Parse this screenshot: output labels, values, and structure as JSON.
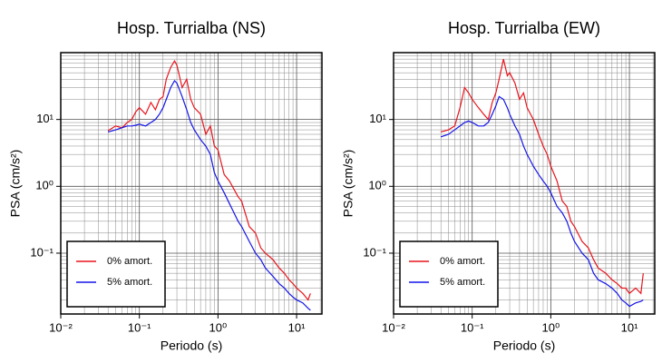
{
  "chart_data": [
    {
      "type": "line",
      "title": "Hosp. Turrialba (NS)",
      "xlabel": "Periodo (s)",
      "ylabel": "PSA (cm/s²)",
      "x": [
        0.04,
        0.05,
        0.06,
        0.07,
        0.08,
        0.09,
        0.1,
        0.12,
        0.14,
        0.16,
        0.18,
        0.2,
        0.22,
        0.25,
        0.28,
        0.3,
        0.35,
        0.4,
        0.45,
        0.5,
        0.6,
        0.7,
        0.8,
        0.9,
        1,
        1.2,
        1.4,
        1.6,
        1.8,
        2,
        2.5,
        3,
        3.5,
        4,
        5,
        6,
        7,
        8,
        9,
        10,
        12,
        14,
        15
      ],
      "series": [
        {
          "name": "0% amort.",
          "color": "#e8141c",
          "values": [
            6.8,
            8,
            7.5,
            9,
            10,
            13,
            15,
            12,
            18,
            14,
            20,
            22,
            40,
            60,
            75,
            65,
            30,
            40,
            20,
            15,
            12,
            6,
            8,
            4,
            3.5,
            1.5,
            1.2,
            0.9,
            0.7,
            0.6,
            0.25,
            0.2,
            0.12,
            0.1,
            0.08,
            0.06,
            0.05,
            0.04,
            0.035,
            0.03,
            0.025,
            0.02,
            0.025
          ]
        },
        {
          "name": "5% amort.",
          "color": "#1414e8",
          "values": [
            6.5,
            7,
            7.5,
            8,
            8,
            8.2,
            8.5,
            8,
            9,
            10,
            12,
            15,
            20,
            30,
            38,
            35,
            22,
            14,
            9,
            7,
            5,
            4,
            3,
            1.6,
            1.2,
            0.8,
            0.55,
            0.4,
            0.3,
            0.25,
            0.15,
            0.1,
            0.08,
            0.06,
            0.045,
            0.035,
            0.03,
            0.025,
            0.022,
            0.02,
            0.018,
            0.015,
            0.014
          ]
        }
      ],
      "log_x": true,
      "log_y": true,
      "grid": true,
      "legend": "lower left",
      "xlim": [
        0.01,
        21
      ],
      "ylim": [
        0.0123,
        100
      ],
      "xticks": [
        {
          "value": 0.01,
          "label": "10⁻²"
        },
        {
          "value": 0.1,
          "label": "10⁻¹"
        },
        {
          "value": 1,
          "label": "10⁰"
        },
        {
          "value": 10,
          "label": "10¹"
        }
      ],
      "yticks": [
        {
          "value": 0.1,
          "label": "10⁻¹"
        },
        {
          "value": 1,
          "label": "10⁰"
        },
        {
          "value": 10,
          "label": "10¹"
        }
      ]
    },
    {
      "type": "line",
      "title": "Hosp. Turrialba (EW)",
      "xlabel": "Periodo (s)",
      "ylabel": "PSA (cm/s²)",
      "x": [
        0.04,
        0.05,
        0.06,
        0.07,
        0.08,
        0.09,
        0.1,
        0.12,
        0.14,
        0.16,
        0.18,
        0.2,
        0.22,
        0.25,
        0.28,
        0.3,
        0.35,
        0.4,
        0.45,
        0.5,
        0.6,
        0.7,
        0.8,
        0.9,
        1,
        1.2,
        1.4,
        1.6,
        1.8,
        2,
        2.5,
        3,
        3.5,
        4,
        5,
        6,
        7,
        8,
        9,
        10,
        12,
        14,
        15
      ],
      "series": [
        {
          "name": "0% amort.",
          "color": "#e8141c",
          "values": [
            6.5,
            7,
            8,
            15,
            30,
            25,
            20,
            15,
            12,
            10,
            18,
            25,
            40,
            80,
            45,
            50,
            35,
            20,
            25,
            15,
            10,
            6,
            4,
            3,
            2,
            1.2,
            0.6,
            0.5,
            0.3,
            0.25,
            0.15,
            0.12,
            0.08,
            0.06,
            0.05,
            0.04,
            0.035,
            0.03,
            0.03,
            0.025,
            0.03,
            0.025,
            0.05
          ]
        },
        {
          "name": "5% amort.",
          "color": "#1414e8",
          "values": [
            5.5,
            6,
            7,
            8,
            9,
            9.5,
            9,
            8,
            8,
            9,
            12,
            16,
            22,
            20,
            15,
            12,
            8,
            6,
            4,
            3,
            2,
            1.5,
            1.2,
            1,
            0.8,
            0.5,
            0.4,
            0.3,
            0.2,
            0.15,
            0.1,
            0.08,
            0.05,
            0.04,
            0.035,
            0.03,
            0.025,
            0.02,
            0.018,
            0.016,
            0.018,
            0.019,
            0.02
          ]
        }
      ],
      "log_x": true,
      "log_y": true,
      "grid": true,
      "legend": "lower left",
      "xlim": [
        0.01,
        21
      ],
      "ylim": [
        0.0123,
        100
      ],
      "xticks": [
        {
          "value": 0.01,
          "label": "10⁻²"
        },
        {
          "value": 0.1,
          "label": "10⁻¹"
        },
        {
          "value": 1,
          "label": "10⁰"
        },
        {
          "value": 10,
          "label": "10¹"
        }
      ],
      "yticks": [
        {
          "value": 0.1,
          "label": "10⁻¹"
        },
        {
          "value": 1,
          "label": "10⁰"
        },
        {
          "value": 10,
          "label": "10¹"
        }
      ]
    }
  ]
}
